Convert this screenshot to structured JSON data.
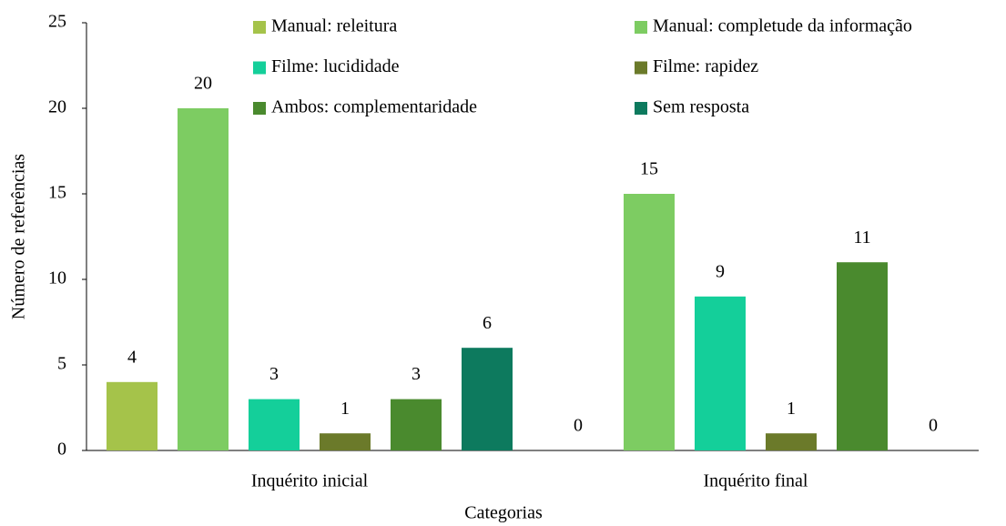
{
  "chart_data": {
    "type": "bar",
    "xlabel": "Categorias",
    "ylabel": "Número de referências",
    "categories": [
      "Inquérito inicial",
      "Inquérito final"
    ],
    "series": [
      {
        "name": "Manual: releitura",
        "color": "#a5c34a",
        "values": [
          4,
          0
        ]
      },
      {
        "name": "Manual: completude da informação",
        "color": "#7dcc62",
        "values": [
          20,
          15
        ]
      },
      {
        "name": "Filme: lucididade",
        "color": "#14cf9a",
        "values": [
          3,
          9
        ]
      },
      {
        "name": "Filme: rapidez",
        "color": "#6b7a2a",
        "values": [
          1,
          1
        ]
      },
      {
        "name": "Ambos: complementaridade",
        "color": "#4a8a2e",
        "values": [
          3,
          11
        ]
      },
      {
        "name": "Sem resposta",
        "color": "#0d7a5e",
        "values": [
          6,
          0
        ]
      }
    ],
    "ylim": [
      0,
      25
    ],
    "yticks": [
      0,
      5,
      10,
      15,
      20,
      25
    ],
    "legend": "top"
  }
}
